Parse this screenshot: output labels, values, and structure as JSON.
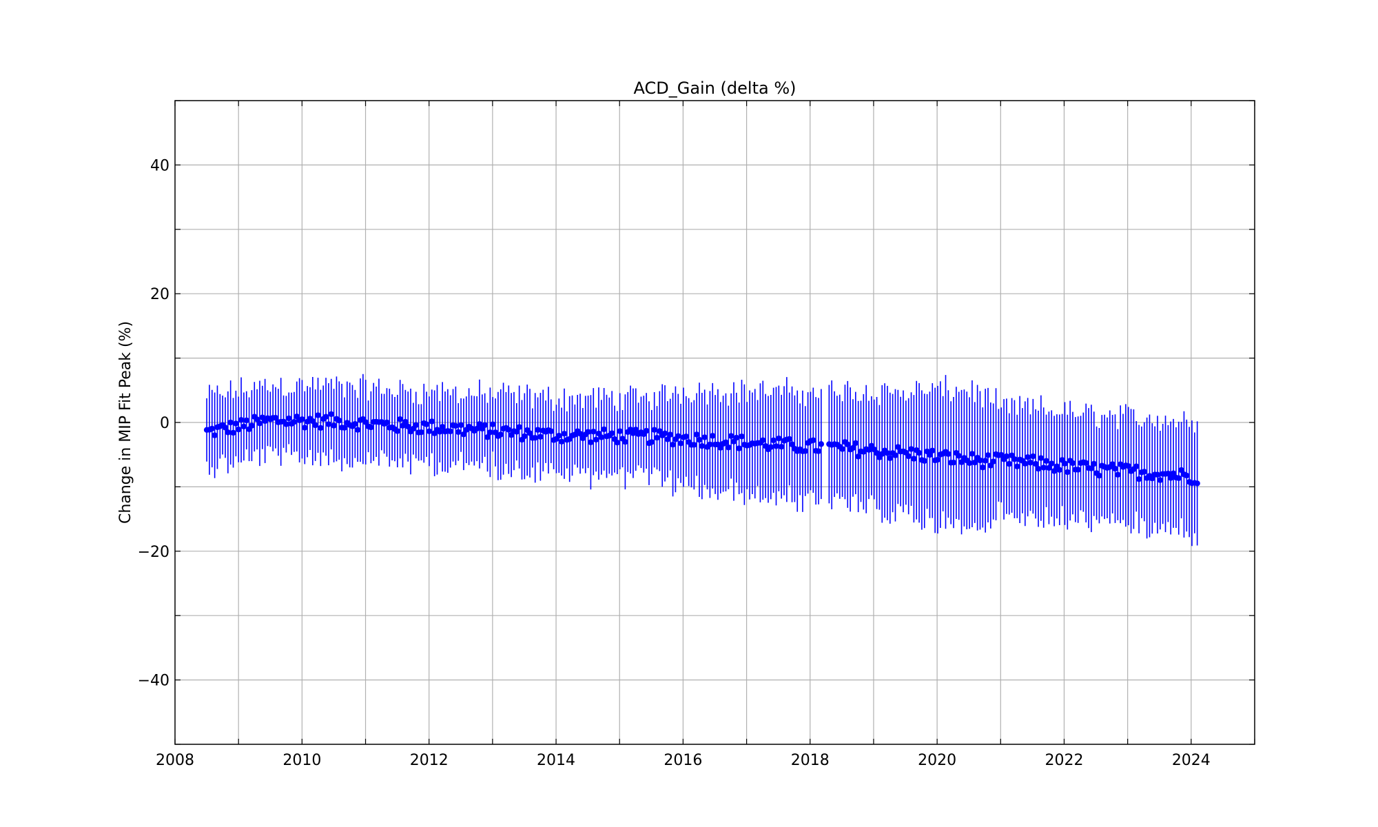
{
  "chart_data": {
    "type": "scatter",
    "title": "ACD_Gain (delta %)",
    "xlabel": "",
    "ylabel": "Change in MIP Fit Peak (%)",
    "xlim": [
      2008,
      2025
    ],
    "ylim": [
      -50,
      50
    ],
    "x_ticks": [
      2008,
      2010,
      2012,
      2014,
      2016,
      2018,
      2020,
      2022,
      2024
    ],
    "x_tick_labels": [
      "2008",
      "2010",
      "2012",
      "2014",
      "2016",
      "2018",
      "2020",
      "2022",
      "2024"
    ],
    "x_minor_step": 1,
    "y_ticks": [
      -40,
      -20,
      0,
      20,
      40
    ],
    "y_tick_labels": [
      "−40",
      "−20",
      "0",
      "20",
      "40"
    ],
    "y_minor_step": 10,
    "grid": true,
    "legend": "none",
    "series": [
      {
        "color": "#0000ff",
        "marker": "circle",
        "error_bars": true,
        "x_start": 2008.5,
        "x_end": 2024.1,
        "x_step": 0.0417,
        "gap": [
          2018.2,
          2018.28
        ],
        "trend": [
          {
            "x": 2008.5,
            "y": -1.5
          },
          {
            "x": 2009.5,
            "y": 0.3
          },
          {
            "x": 2010.5,
            "y": 0.2
          },
          {
            "x": 2011.5,
            "y": -0.5
          },
          {
            "x": 2012.5,
            "y": -1.0
          },
          {
            "x": 2014.0,
            "y": -2.0
          },
          {
            "x": 2015.5,
            "y": -2.2
          },
          {
            "x": 2016.5,
            "y": -2.8
          },
          {
            "x": 2017.5,
            "y": -3.5
          },
          {
            "x": 2018.5,
            "y": -4.0
          },
          {
            "x": 2019.5,
            "y": -4.8
          },
          {
            "x": 2020.5,
            "y": -5.8
          },
          {
            "x": 2021.5,
            "y": -6.3
          },
          {
            "x": 2022.5,
            "y": -7.3
          },
          {
            "x": 2023.5,
            "y": -7.9
          },
          {
            "x": 2024.1,
            "y": -8.5
          }
        ],
        "error_halfwidth": [
          {
            "x": 2008.5,
            "y": 5.5
          },
          {
            "x": 2012.0,
            "y": 5.5
          },
          {
            "x": 2015.5,
            "y": 6.0
          },
          {
            "x": 2016.0,
            "y": 7.5
          },
          {
            "x": 2018.0,
            "y": 8.5
          },
          {
            "x": 2019.5,
            "y": 9.5
          },
          {
            "x": 2020.5,
            "y": 11.0
          },
          {
            "x": 2021.0,
            "y": 8.5
          },
          {
            "x": 2024.1,
            "y": 8.5
          }
        ]
      }
    ]
  }
}
